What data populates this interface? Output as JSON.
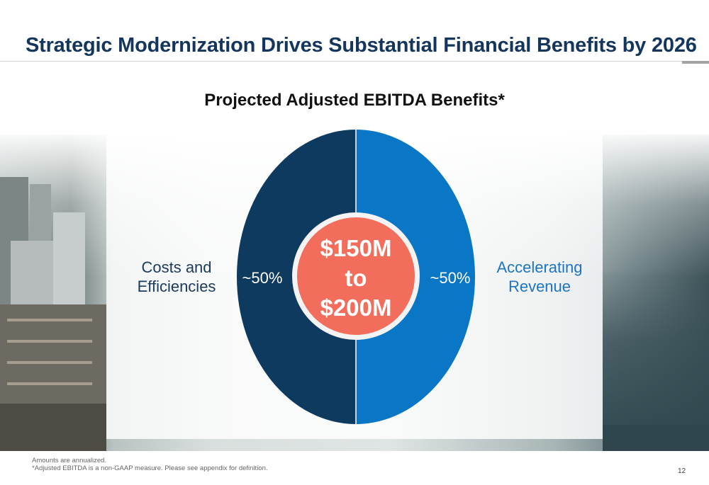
{
  "slide": {
    "title": "Strategic Modernization Drives Substantial Financial Benefits by 2026",
    "page_number": "12",
    "footnotes": [
      "Amounts are annualized.",
      "*Adjusted EBITDA is a non-GAAP measure.  Please see appendix for definition."
    ],
    "colors": {
      "title": "#14365c",
      "costs_segment": "#0d3a5e",
      "revenue_segment": "#0a76c6",
      "center_circle": "#f26d5b"
    }
  },
  "chart_data": {
    "type": "pie",
    "title": "Projected Adjusted EBITDA Benefits*",
    "center_text": [
      "$150M",
      "to",
      "$200M"
    ],
    "series": [
      {
        "name": "Costs and Efficiencies",
        "label_lines": [
          "Costs  and",
          "Efficiencies"
        ],
        "value": 50,
        "value_label": "~50%"
      },
      {
        "name": "Accelerating Revenue",
        "label_lines": [
          "Accelerating",
          "Revenue"
        ],
        "value": 50,
        "value_label": "~50%"
      }
    ]
  }
}
